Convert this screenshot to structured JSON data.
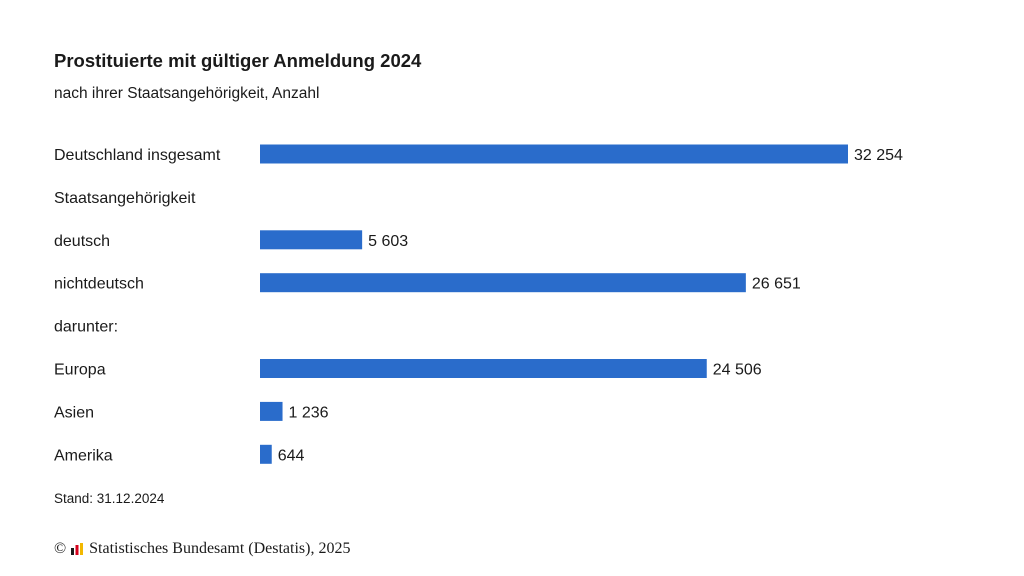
{
  "chart_data": {
    "type": "bar",
    "orientation": "horizontal",
    "title": "Prostituierte mit gültiger Anmeldung 2024",
    "subtitle": "nach ihrer Staatsangehörigkeit, Anzahl",
    "rows": [
      {
        "label": "Deutschland insgesamt",
        "value": 32254,
        "value_label": "32 254"
      },
      {
        "label": "Staatsangehörigkeit",
        "value": null,
        "value_label": ""
      },
      {
        "label": "deutsch",
        "value": 5603,
        "value_label": "5 603"
      },
      {
        "label": "nichtdeutsch",
        "value": 26651,
        "value_label": "26 651"
      },
      {
        "label": "darunter:",
        "value": null,
        "value_label": ""
      },
      {
        "label": "Europa",
        "value": 24506,
        "value_label": "24 506"
      },
      {
        "label": "Asien",
        "value": 1236,
        "value_label": "1 236"
      },
      {
        "label": "Amerika",
        "value": 644,
        "value_label": "644"
      }
    ],
    "xlim": [
      0,
      32254
    ],
    "bar_color": "#2a6ccb",
    "grid": false,
    "legend": "none",
    "note": "Stand: 31.12.2024"
  },
  "footer": {
    "copyright_symbol": "©",
    "source": "Statistisches Bundesamt (Destatis), 2025",
    "logo_colors": [
      "#1a1a1a",
      "#d6001c",
      "#f2b800"
    ]
  }
}
